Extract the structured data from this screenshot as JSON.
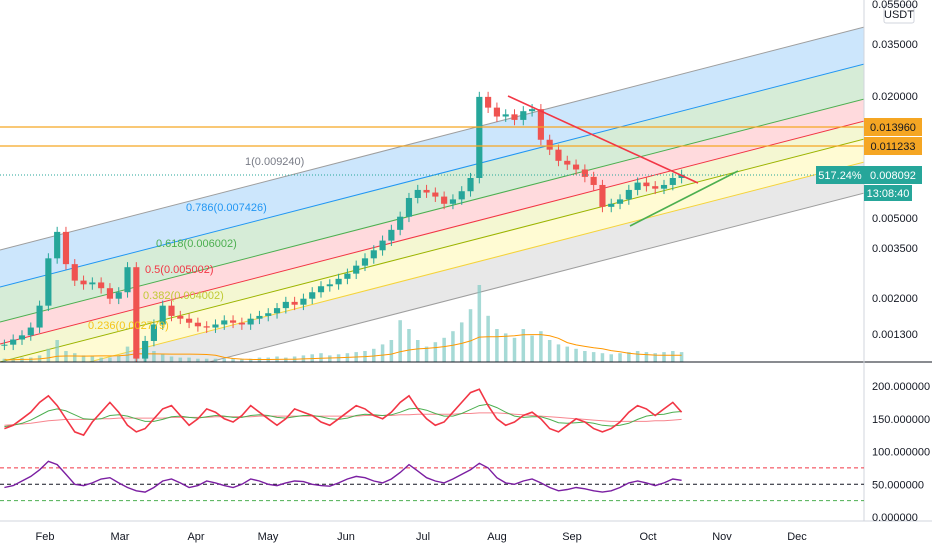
{
  "chart_data": {
    "type": "candlestick",
    "currency_label": "USDT",
    "price_axis_ticks": [
      "0.055000",
      "0.035000",
      "0.020000",
      "0.005000",
      "0.003500",
      "0.002000",
      "0.001300"
    ],
    "x_axis_ticks": [
      "Feb",
      "Mar",
      "Apr",
      "May",
      "Jun",
      "Jul",
      "Aug",
      "Sep",
      "Oct",
      "Nov",
      "Dec"
    ],
    "indicator_axis_ticks": [
      "200.000000",
      "150.000000",
      "100.000000",
      "50.000000",
      "0.000000"
    ],
    "horizontal_levels": [
      {
        "label": "0.013960",
        "color": "#f5a623"
      },
      {
        "label": "0.011233",
        "color": "#f5a623"
      }
    ],
    "current_price": {
      "label": "0.008092",
      "change": "517.24%",
      "countdown": "13:08:40",
      "color": "#26a69a"
    },
    "fib_channel_labels": [
      {
        "text": "1(0.009240)",
        "color": "#787b86"
      },
      {
        "text": "0.786(0.007426)",
        "color": "#2196f3"
      },
      {
        "text": "0.618(0.006002)",
        "color": "#4caf50"
      },
      {
        "text": "0.5(0.005002)",
        "color": "#f23645"
      },
      {
        "text": "0.382(0.004002)",
        "color": "#c0ca33"
      },
      {
        "text": "0.236(0.002779)",
        "color": "#f5c518"
      }
    ],
    "fib_band_colors": [
      "#bbdefb",
      "#c8e6c9",
      "#ffcdd2",
      "#f0f4c3",
      "#fff9c4",
      "#e0e0e0"
    ],
    "fib_line_colors": [
      "#9e9e9e",
      "#2196f3",
      "#4caf50",
      "#f23645",
      "#9cb400",
      "#f5d33a",
      "#9e9e9e"
    ],
    "price_series": [
      0.00115,
      0.00122,
      0.00128,
      0.0014,
      0.0018,
      0.0031,
      0.0042,
      0.0029,
      0.0024,
      0.0023,
      0.00235,
      0.0022,
      0.00195,
      0.0021,
      0.0028,
      0.00098,
      0.0012,
      0.00145,
      0.0018,
      0.0016,
      0.00155,
      0.00148,
      0.00142,
      0.0014,
      0.00145,
      0.00152,
      0.00148,
      0.00145,
      0.00155,
      0.0016,
      0.00165,
      0.00175,
      0.00188,
      0.00182,
      0.00195,
      0.0021,
      0.00225,
      0.0023,
      0.00245,
      0.0026,
      0.00285,
      0.0031,
      0.0034,
      0.0038,
      0.0043,
      0.005,
      0.0062,
      0.0068,
      0.0066,
      0.0063,
      0.0058,
      0.0061,
      0.0067,
      0.0078,
      0.0198,
      0.0175,
      0.0158,
      0.0162,
      0.0152,
      0.0168,
      0.0172,
      0.0121,
      0.0108,
      0.0095,
      0.0091,
      0.0086,
      0.0079,
      0.0072,
      0.0056,
      0.0058,
      0.0061,
      0.0068,
      0.0074,
      0.0071,
      0.0069,
      0.0072,
      0.0078,
      0.0081
    ],
    "volume_series": [
      3,
      3,
      4,
      4,
      6,
      12,
      20,
      10,
      8,
      6,
      5,
      4,
      4,
      6,
      14,
      30,
      18,
      10,
      7,
      5,
      4,
      4,
      3,
      3,
      3,
      3,
      3,
      3,
      3,
      4,
      4,
      5,
      4,
      5,
      6,
      7,
      8,
      6,
      7,
      8,
      9,
      10,
      12,
      16,
      20,
      38,
      30,
      20,
      14,
      18,
      22,
      28,
      36,
      48,
      70,
      42,
      30,
      26,
      22,
      30,
      24,
      28,
      20,
      16,
      14,
      12,
      10,
      9,
      8,
      7,
      8,
      9,
      10,
      9,
      8,
      9,
      10,
      9
    ],
    "volume_ma_color": "#ff9800",
    "volume_bar_color": "#80cbc4",
    "indicator1_series": {
      "name": "",
      "color": "#f23645",
      "values": [
        135,
        140,
        150,
        160,
        175,
        185,
        170,
        150,
        130,
        125,
        145,
        160,
        175,
        160,
        140,
        130,
        135,
        150,
        165,
        170,
        155,
        140,
        150,
        165,
        160,
        150,
        145,
        155,
        170,
        160,
        150,
        140,
        150,
        165,
        160,
        155,
        145,
        140,
        150,
        160,
        170,
        165,
        155,
        150,
        160,
        175,
        185,
        165,
        150,
        140,
        145,
        160,
        175,
        190,
        195,
        170,
        150,
        140,
        145,
        155,
        160,
        150,
        135,
        130,
        140,
        150,
        145,
        135,
        130,
        135,
        145,
        160,
        170,
        165,
        155,
        165,
        175,
        160
      ]
    },
    "indicator1_signal": {
      "name": "",
      "color": "#4caf50",
      "values": [
        138,
        140,
        143,
        148,
        155,
        162,
        165,
        162,
        156,
        150,
        149,
        150,
        155,
        156,
        154,
        150,
        146,
        146,
        149,
        153,
        154,
        152,
        151,
        153,
        155,
        154,
        152,
        152,
        155,
        156,
        155,
        152,
        151,
        153,
        155,
        155,
        153,
        150,
        149,
        151,
        155,
        157,
        156,
        155,
        156,
        160,
        165,
        166,
        163,
        158,
        154,
        154,
        158,
        164,
        170,
        172,
        167,
        160,
        154,
        152,
        153,
        153,
        149,
        144,
        143,
        144,
        145,
        143,
        140,
        139,
        140,
        143,
        149,
        154,
        156,
        157,
        160,
        161
      ]
    },
    "indicator1_ma": {
      "name": "",
      "color": "#f23645",
      "values": [
        140,
        141,
        142,
        143,
        145,
        147,
        148,
        149,
        149,
        149,
        149,
        150,
        150,
        151,
        151,
        151,
        151,
        151,
        151,
        152,
        152,
        152,
        152,
        152,
        153,
        153,
        153,
        153,
        153,
        154,
        154,
        154,
        154,
        154,
        154,
        154,
        154,
        154,
        154,
        154,
        154,
        155,
        155,
        155,
        155,
        156,
        156,
        157,
        157,
        157,
        157,
        157,
        158,
        158,
        159,
        159,
        159,
        158,
        157,
        156,
        155,
        154,
        153,
        152,
        151,
        150,
        149,
        148,
        147,
        146,
        146,
        146,
        146,
        146,
        147,
        147,
        148,
        149
      ]
    },
    "rsi_series": {
      "name": "",
      "color": "#7b1fa2",
      "values": [
        45,
        48,
        55,
        62,
        72,
        85,
        80,
        65,
        50,
        48,
        52,
        58,
        60,
        52,
        45,
        40,
        38,
        45,
        55,
        58,
        52,
        45,
        48,
        55,
        52,
        48,
        45,
        50,
        58,
        55,
        50,
        48,
        52,
        55,
        54,
        50,
        48,
        47,
        52,
        58,
        62,
        60,
        55,
        52,
        58,
        68,
        80,
        70,
        60,
        55,
        52,
        58,
        65,
        72,
        82,
        75,
        60,
        52,
        50,
        55,
        58,
        52,
        45,
        40,
        42,
        45,
        43,
        40,
        38,
        40,
        45,
        52,
        55,
        52,
        48,
        52,
        58,
        56
      ]
    },
    "rsi_levels": [
      {
        "value": 75,
        "color": "#f23645"
      },
      {
        "value": 50,
        "color": "#131722"
      },
      {
        "value": 25,
        "color": "#4caf50"
      }
    ]
  }
}
